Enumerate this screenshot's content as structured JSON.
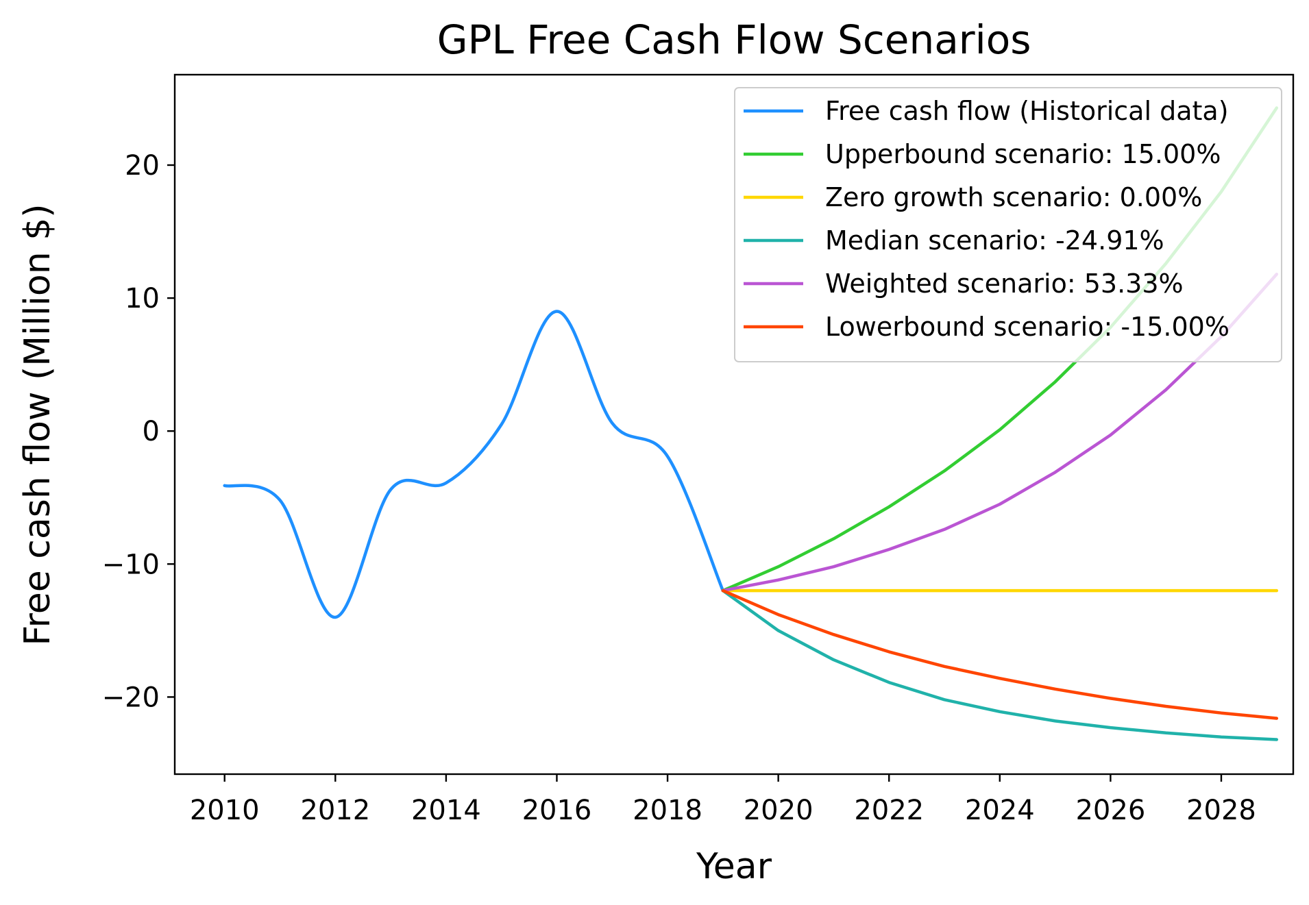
{
  "chart_data": {
    "type": "line",
    "title": "GPL Free Cash Flow Scenarios",
    "xlabel": "Year",
    "ylabel": "Free cash flow (Million $)",
    "xlim": [
      2009.1,
      2029.3
    ],
    "ylim": [
      -25.8,
      26.8
    ],
    "xticks": [
      2010,
      2012,
      2014,
      2016,
      2018,
      2020,
      2022,
      2024,
      2026,
      2028
    ],
    "xtick_labels": [
      "2010",
      "2012",
      "2014",
      "2016",
      "2018",
      "2020",
      "2022",
      "2024",
      "2026",
      "2028"
    ],
    "yticks": [
      20,
      10,
      0,
      -10,
      -20
    ],
    "ytick_labels": [
      "20",
      "10",
      "0",
      "−10",
      "−20"
    ],
    "grid": false,
    "legend_position": "top-right",
    "series": [
      {
        "name": "Free cash flow (Historical data)",
        "color": "#1e90ff",
        "smooth": true,
        "x": [
          2010,
          2011,
          2012,
          2013,
          2014,
          2015,
          2016,
          2017,
          2018,
          2019
        ],
        "y": [
          -4.1,
          -5.2,
          -14.0,
          -4.4,
          -3.9,
          0.5,
          9.0,
          0.6,
          -1.9,
          -12.0
        ]
      },
      {
        "name": "Upperbound scenario: 15.00%",
        "color": "#32cd32",
        "x": [
          2019,
          2020,
          2021,
          2022,
          2023,
          2024,
          2025,
          2026,
          2027,
          2028,
          2029
        ],
        "y": [
          -12.0,
          -10.2,
          -8.1,
          -5.7,
          -3.0,
          0.1,
          3.7,
          7.8,
          12.6,
          18.0,
          24.3
        ]
      },
      {
        "name": "Zero growth scenario: 0.00%",
        "color": "#ffd700",
        "x": [
          2019,
          2020,
          2021,
          2022,
          2023,
          2024,
          2025,
          2026,
          2027,
          2028,
          2029
        ],
        "y": [
          -12.0,
          -12.0,
          -12.0,
          -12.0,
          -12.0,
          -12.0,
          -12.0,
          -12.0,
          -12.0,
          -12.0,
          -12.0
        ]
      },
      {
        "name": "Median scenario: -24.91%",
        "color": "#20b2aa",
        "x": [
          2019,
          2020,
          2021,
          2022,
          2023,
          2024,
          2025,
          2026,
          2027,
          2028,
          2029
        ],
        "y": [
          -12.0,
          -15.0,
          -17.2,
          -18.9,
          -20.2,
          -21.1,
          -21.8,
          -22.3,
          -22.7,
          -23.0,
          -23.2
        ]
      },
      {
        "name": "Weighted scenario: 53.33%",
        "color": "#ba55d3",
        "x": [
          2019,
          2020,
          2021,
          2022,
          2023,
          2024,
          2025,
          2026,
          2027,
          2028,
          2029
        ],
        "y": [
          -12.0,
          -11.2,
          -10.2,
          -8.9,
          -7.4,
          -5.5,
          -3.1,
          -0.3,
          3.1,
          7.1,
          11.8
        ]
      },
      {
        "name": "Lowerbound scenario: -15.00%",
        "color": "#ff4500",
        "x": [
          2019,
          2020,
          2021,
          2022,
          2023,
          2024,
          2025,
          2026,
          2027,
          2028,
          2029
        ],
        "y": [
          -12.0,
          -13.8,
          -15.3,
          -16.6,
          -17.7,
          -18.6,
          -19.4,
          -20.1,
          -20.7,
          -21.2,
          -21.6
        ]
      }
    ]
  }
}
